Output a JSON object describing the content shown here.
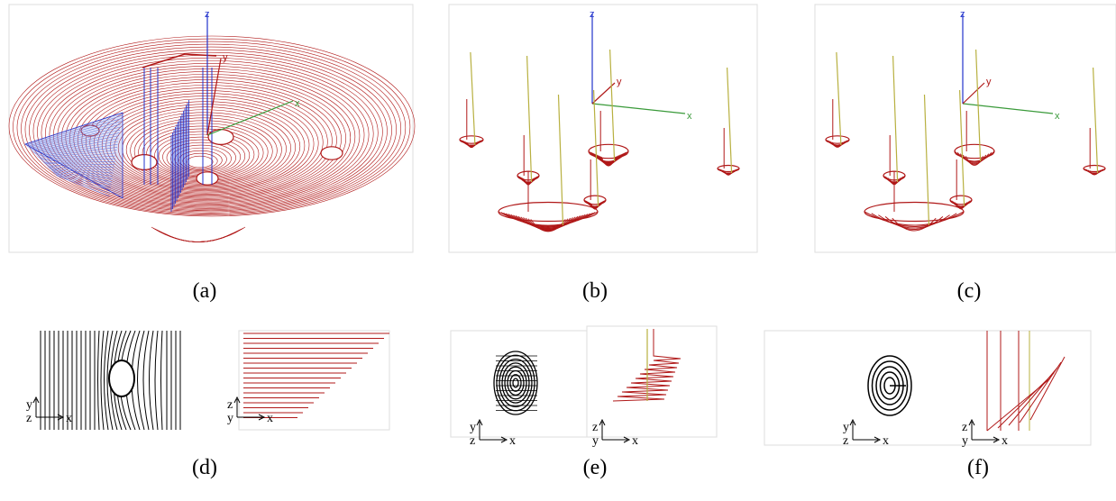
{
  "panels": [
    {
      "label": "(a)",
      "views": [
        [
          "z",
          "y",
          "x"
        ]
      ]
    },
    {
      "label": "(b)",
      "views": [
        [
          "z",
          "y",
          "x"
        ]
      ]
    },
    {
      "label": "(c)",
      "views": [
        [
          "z",
          "y",
          "x"
        ]
      ]
    },
    {
      "label": "(d)",
      "views": [
        [
          "y",
          "z",
          "x"
        ],
        [
          "z",
          "y",
          "x"
        ]
      ]
    },
    {
      "label": "(e)",
      "views": [
        [
          "y",
          "z",
          "x"
        ],
        [
          "z",
          "y",
          "x"
        ]
      ]
    },
    {
      "label": "(f)",
      "views": [
        [
          "y",
          "z",
          "x"
        ],
        [
          "z",
          "y",
          "x"
        ]
      ]
    }
  ]
}
